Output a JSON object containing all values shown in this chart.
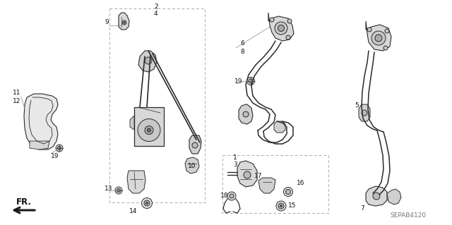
{
  "bg_color": "#ffffff",
  "diagram_code": "SEPAB4120",
  "fr_label": "FR.",
  "pc": "#2a2a2a",
  "lc": "#555555",
  "label_color": "#111111",
  "diagram_label_color": "#777777",
  "label_fontsize": 6.5,
  "diagram_code_fontsize": 6.5,
  "figsize": [
    6.4,
    3.19
  ],
  "dpi": 100
}
